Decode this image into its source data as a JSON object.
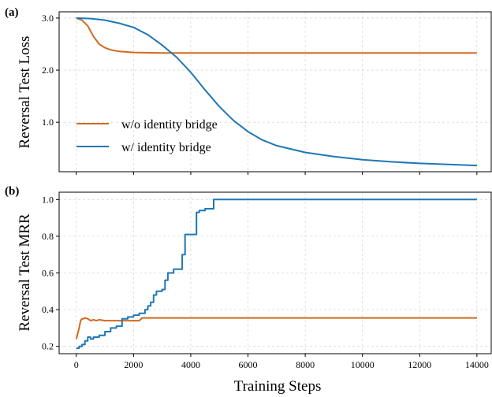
{
  "colors": {
    "without": "#d2691e",
    "with": "#1f77b4"
  },
  "chart_data": [
    {
      "panel": "(a)",
      "type": "line",
      "ylabel": "Reversal Test Loss",
      "xlabel": "",
      "xlim": [
        -600,
        14500
      ],
      "ylim": [
        0.05,
        3.12
      ],
      "xticks": [
        0,
        2000,
        4000,
        6000,
        8000,
        10000,
        12000,
        14000
      ],
      "yticks": [
        1.0,
        2.0,
        3.0
      ],
      "ytick_labels": [
        "1.0",
        "2.0",
        "3.0"
      ],
      "legend_position": "center-left",
      "series": [
        {
          "name": "w/o identity bridge",
          "color_key": "without",
          "x": [
            0,
            200,
            400,
            600,
            800,
            1000,
            1200,
            1500,
            2000,
            3000,
            4000,
            6000,
            8000,
            10000,
            12000,
            14000
          ],
          "y": [
            3.0,
            2.96,
            2.85,
            2.65,
            2.5,
            2.43,
            2.39,
            2.36,
            2.34,
            2.33,
            2.33,
            2.33,
            2.33,
            2.33,
            2.33,
            2.33
          ]
        },
        {
          "name": "w/ identity bridge",
          "color_key": "with",
          "x": [
            0,
            500,
            1000,
            1500,
            2000,
            2500,
            3000,
            3500,
            4000,
            4500,
            5000,
            5500,
            6000,
            6500,
            7000,
            8000,
            9000,
            10000,
            11000,
            12000,
            13000,
            14000
          ],
          "y": [
            3.0,
            2.99,
            2.96,
            2.9,
            2.82,
            2.68,
            2.48,
            2.25,
            1.96,
            1.62,
            1.3,
            1.03,
            0.82,
            0.66,
            0.55,
            0.42,
            0.34,
            0.28,
            0.24,
            0.21,
            0.19,
            0.17
          ]
        }
      ]
    },
    {
      "panel": "(b)",
      "type": "line",
      "ylabel": "Reversal Test MRR",
      "xlabel": "Training Steps",
      "xlim": [
        -600,
        14500
      ],
      "ylim": [
        0.16,
        1.04
      ],
      "xticks": [
        0,
        2000,
        4000,
        6000,
        8000,
        10000,
        12000,
        14000
      ],
      "xtick_labels": [
        "0",
        "2000",
        "4000",
        "6000",
        "8000",
        "10000",
        "12000",
        "14000"
      ],
      "yticks": [
        0.2,
        0.4,
        0.6,
        0.8,
        1.0
      ],
      "ytick_labels": [
        "0.2",
        "0.4",
        "0.6",
        "0.8",
        "1.0"
      ],
      "series": [
        {
          "name": "w/o identity bridge",
          "color_key": "without",
          "x": [
            0,
            50,
            100,
            150,
            200,
            250,
            300,
            400,
            500,
            600,
            700,
            800,
            1000,
            1500,
            2200,
            2300,
            3000,
            6000,
            10000,
            14000
          ],
          "y": [
            0.24,
            0.27,
            0.3,
            0.34,
            0.35,
            0.35,
            0.355,
            0.35,
            0.34,
            0.345,
            0.34,
            0.345,
            0.34,
            0.34,
            0.34,
            0.355,
            0.355,
            0.355,
            0.355,
            0.355
          ],
          "step": false
        },
        {
          "name": "w/ identity bridge",
          "color_key": "with",
          "x": [
            0,
            100,
            200,
            300,
            400,
            500,
            600,
            800,
            1000,
            1200,
            1400,
            1600,
            1800,
            2000,
            2200,
            2400,
            2500,
            2600,
            2700,
            2800,
            2900,
            3000,
            3100,
            3200,
            3400,
            3600,
            3700,
            3800,
            4000,
            4200,
            4300,
            4500,
            4800,
            5000,
            6000,
            8000,
            10000,
            12000,
            14000
          ],
          "y": [
            0.19,
            0.2,
            0.21,
            0.23,
            0.25,
            0.24,
            0.25,
            0.26,
            0.28,
            0.3,
            0.31,
            0.35,
            0.36,
            0.37,
            0.38,
            0.4,
            0.42,
            0.44,
            0.48,
            0.5,
            0.5,
            0.51,
            0.56,
            0.6,
            0.62,
            0.62,
            0.7,
            0.81,
            0.81,
            0.93,
            0.94,
            0.95,
            1.0,
            1.0,
            1.0,
            1.0,
            1.0,
            1.0,
            1.0
          ],
          "step": true
        }
      ]
    }
  ]
}
